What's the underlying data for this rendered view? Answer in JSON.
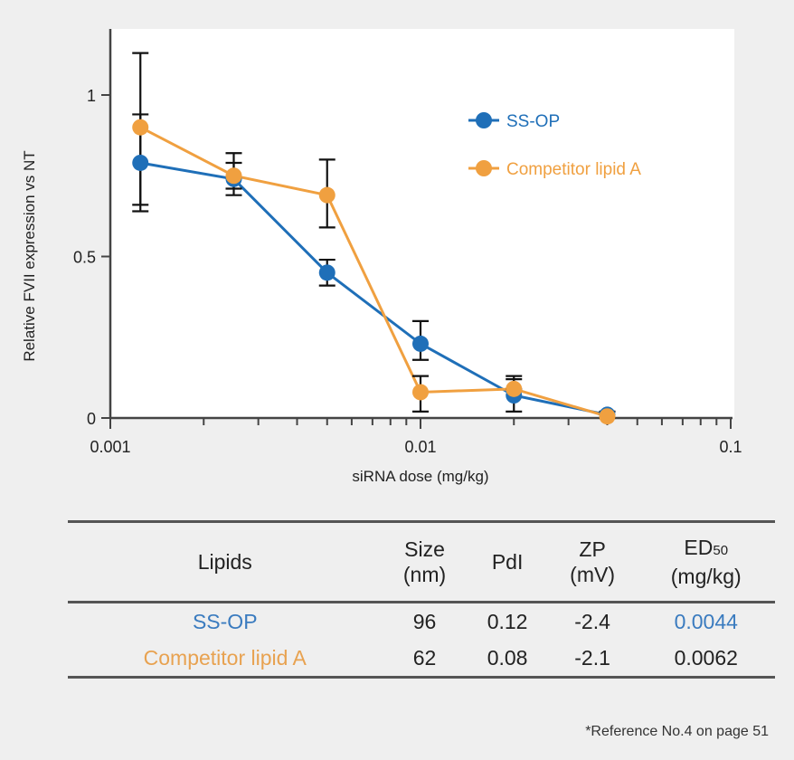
{
  "chart_data": {
    "type": "line",
    "title": "",
    "xlabel": "siRNA dose (mg/kg)",
    "ylabel": "Relative FVII expression vs NT",
    "xscale": "log",
    "xlim": [
      0.001,
      0.1
    ],
    "ylim": [
      0,
      1.2
    ],
    "xticks": [
      {
        "v": 0.001,
        "label": "0.001"
      },
      {
        "v": 0.01,
        "label": "0.01"
      },
      {
        "v": 0.1,
        "label": "0.1"
      }
    ],
    "yticks": [
      {
        "v": 0,
        "label": "0"
      },
      {
        "v": 0.5,
        "label": "0.5"
      },
      {
        "v": 1,
        "label": "1"
      }
    ],
    "legend_position": "top-right",
    "x": [
      0.00125,
      0.0025,
      0.005,
      0.01,
      0.02,
      0.04
    ],
    "series": [
      {
        "name": "SS-OP",
        "color": "#1f6fb8",
        "values": [
          0.79,
          0.74,
          0.45,
          0.23,
          0.07,
          0.01
        ],
        "err_low": [
          0.64,
          0.69,
          0.41,
          0.18,
          0.02,
          0.0
        ],
        "err_high": [
          0.94,
          0.79,
          0.49,
          0.3,
          0.12,
          0.02
        ]
      },
      {
        "name": "Competitor lipid A",
        "color": "#f0a040",
        "values": [
          0.9,
          0.75,
          0.69,
          0.08,
          0.09,
          0.005
        ],
        "err_low": [
          0.66,
          0.71,
          0.59,
          0.02,
          0.09,
          0.0
        ],
        "err_high": [
          1.13,
          0.82,
          0.8,
          0.13,
          0.13,
          0.01
        ]
      }
    ]
  },
  "table": {
    "headers": [
      {
        "main": "Lipids",
        "unit": ""
      },
      {
        "main": "Size",
        "unit": "(nm)"
      },
      {
        "main": "PdI",
        "unit": ""
      },
      {
        "main": "ZP",
        "unit": "(mV)"
      },
      {
        "main": "ED",
        "sub": "50",
        "unit": "(mg/kg)"
      }
    ],
    "rows": [
      {
        "lipid": "SS-OP",
        "size": "96",
        "pdi": "0.12",
        "zp": "-2.4",
        "ed50": "0.0044",
        "lipid_color": "#3a7bbf",
        "ed_color": "#3a7bbf"
      },
      {
        "lipid": "Competitor lipid A",
        "size": "62",
        "pdi": "0.08",
        "zp": "-2.1",
        "ed50": "0.0062",
        "lipid_color": "#e8a250",
        "ed_color": "#222222"
      }
    ]
  },
  "footnote": "*Reference No.4 on page 51"
}
